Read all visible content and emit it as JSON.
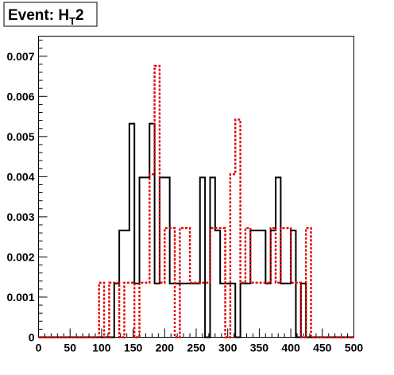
{
  "chart_data": {
    "type": "histogram",
    "title_main": "Event: H",
    "title_sub": "T",
    "title_suffix": "2",
    "bin_width": 8,
    "xlim": [
      0,
      500
    ],
    "ylim": [
      0,
      0.0075
    ],
    "x_ticks": [
      0,
      50,
      100,
      150,
      200,
      250,
      300,
      350,
      400,
      450,
      500
    ],
    "y_ticks": [
      0,
      0.001,
      0.002,
      0.003,
      0.004,
      0.005,
      0.006,
      0.007
    ],
    "y_tick_labels": [
      "0",
      "0.001",
      "0.002",
      "0.003",
      "0.004",
      "0.005",
      "0.006",
      "0.007"
    ],
    "series": [
      {
        "style": "solid",
        "color": "#000000",
        "bin_starts": [
          0,
          8,
          16,
          24,
          32,
          40,
          48,
          56,
          64,
          72,
          80,
          88,
          96,
          104,
          112,
          120,
          128,
          136,
          144,
          152,
          160,
          168,
          176,
          184,
          192,
          200,
          208,
          216,
          224,
          232,
          240,
          248,
          256,
          264,
          272,
          280,
          288,
          296,
          304,
          312,
          320,
          328,
          336,
          344,
          352,
          360,
          368,
          376,
          384,
          392,
          400,
          408,
          416,
          424,
          432,
          440,
          448,
          456,
          464,
          472,
          480,
          488,
          496
        ],
        "values": [
          0,
          0,
          0,
          0,
          0,
          0,
          0,
          0,
          0,
          0,
          0,
          0,
          0,
          0,
          0,
          0.00134,
          0.00266,
          0.00266,
          0.00532,
          0.00134,
          0.00398,
          0.00398,
          0.00532,
          0.00134,
          0.00398,
          0.00398,
          0.00134,
          0.00134,
          0.00134,
          0.00134,
          0.00134,
          0.00134,
          0.00398,
          0,
          0.00398,
          0.00266,
          0.00134,
          0.00134,
          0.00134,
          0,
          0.00134,
          0.00134,
          0.00266,
          0.00266,
          0.00266,
          0.00134,
          0.00266,
          0.00398,
          0.00134,
          0.00134,
          0.00266,
          0,
          0.00134,
          0,
          0,
          0,
          0,
          0,
          0,
          0,
          0,
          0,
          0
        ]
      },
      {
        "style": "dashed",
        "color": "#e00000",
        "bin_starts": [
          0,
          8,
          16,
          24,
          32,
          40,
          48,
          56,
          64,
          72,
          80,
          88,
          96,
          104,
          112,
          120,
          128,
          136,
          144,
          152,
          160,
          168,
          176,
          184,
          192,
          200,
          208,
          216,
          224,
          232,
          240,
          248,
          256,
          264,
          272,
          280,
          288,
          296,
          304,
          312,
          320,
          328,
          336,
          344,
          352,
          360,
          368,
          376,
          384,
          392,
          400,
          408,
          416,
          424,
          432,
          440,
          448,
          456,
          464,
          472,
          480,
          488,
          496
        ],
        "values": [
          0,
          0,
          0,
          0,
          0,
          0,
          0,
          0,
          0,
          0,
          0,
          0,
          0.00136,
          0,
          0.00136,
          0.00136,
          0,
          0.00136,
          0.00136,
          0,
          0.00136,
          0.00136,
          0.00406,
          0.00676,
          0.00136,
          0.00272,
          0.00272,
          0,
          0.00272,
          0.00272,
          0.00136,
          0.00136,
          0.00136,
          0.00136,
          0.00272,
          0.00272,
          0.00272,
          0,
          0.00406,
          0.00542,
          0.00136,
          0.00272,
          0.00136,
          0.00136,
          0.00136,
          0.00136,
          0.00272,
          0.00136,
          0.00272,
          0.00272,
          0.00136,
          0.00136,
          0,
          0.00272,
          0,
          0,
          0,
          0,
          0,
          0,
          0,
          0,
          0
        ]
      }
    ]
  }
}
